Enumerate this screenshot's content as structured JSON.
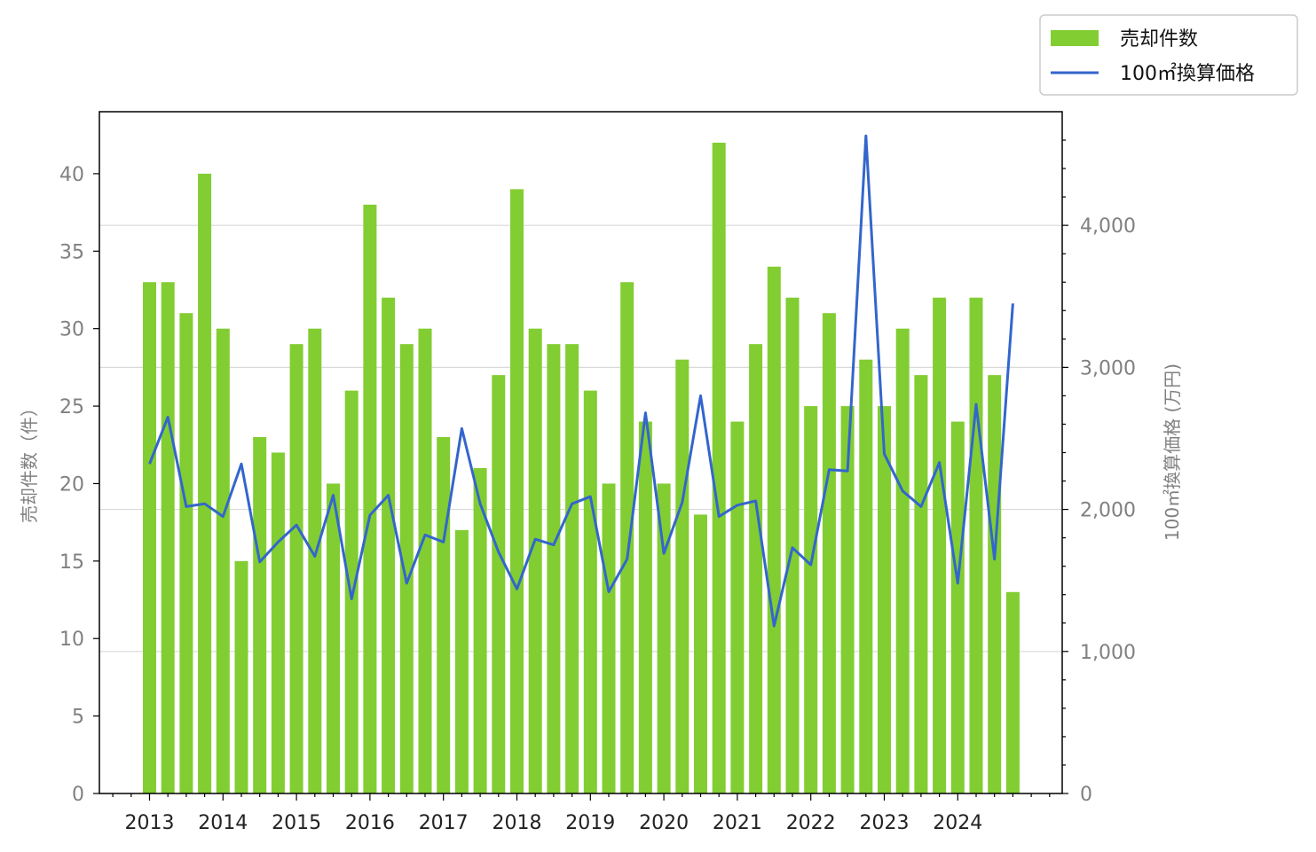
{
  "chart_data": {
    "type": "bar",
    "x_labels": [
      "2013",
      "2014",
      "2015",
      "2016",
      "2017",
      "2018",
      "2019",
      "2020",
      "2021",
      "2022",
      "2023",
      "2024"
    ],
    "legend_position": "top-right (outside)",
    "grid": "horizontal (right axis)",
    "y_left": {
      "label": "売却件数（件）",
      "lim": [
        0,
        44
      ],
      "ticks": [
        0,
        5,
        10,
        15,
        20,
        25,
        30,
        35,
        40
      ]
    },
    "y_right": {
      "label": "100㎡換算価格 (万円)",
      "lim": [
        0,
        4800
      ],
      "ticks": [
        0,
        1000,
        2000,
        3000,
        4000
      ],
      "tick_labels": [
        "0",
        "1,000",
        "2,000",
        "3,000",
        "4,000"
      ]
    },
    "series": [
      {
        "name": "売却件数",
        "type": "bar",
        "axis": "left",
        "color": "#82cd32",
        "values": [
          33,
          33,
          31,
          40,
          30,
          15,
          23,
          22,
          29,
          30,
          20,
          26,
          38,
          32,
          29,
          30,
          23,
          17,
          21,
          27,
          39,
          30,
          29,
          29,
          26,
          20,
          33,
          24,
          20,
          28,
          18,
          42,
          24,
          29,
          34,
          32,
          25,
          31,
          25,
          28,
          25,
          30,
          27,
          32,
          24,
          32,
          27,
          13
        ]
      },
      {
        "name": "100㎡換算価格",
        "type": "line",
        "axis": "right",
        "color": "#3366cc",
        "values": [
          2320,
          2650,
          2020,
          2040,
          1950,
          2320,
          1630,
          1770,
          1890,
          1670,
          2100,
          1370,
          1960,
          2100,
          1480,
          1820,
          1770,
          2570,
          2040,
          1700,
          1440,
          1790,
          1750,
          2040,
          2090,
          1420,
          1650,
          2680,
          1690,
          2050,
          2800,
          1950,
          2030,
          2060,
          1180,
          1730,
          1610,
          2280,
          2270,
          4630,
          2390,
          2130,
          2020,
          2330,
          1480,
          2740,
          1650,
          3450
        ]
      }
    ]
  }
}
